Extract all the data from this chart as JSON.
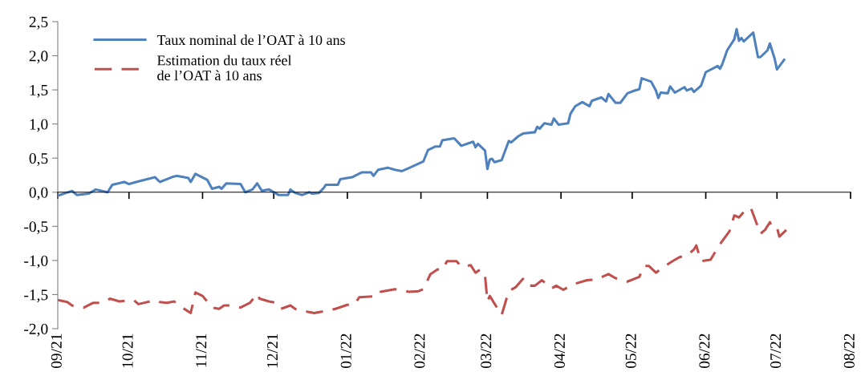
{
  "chart_data": {
    "type": "line",
    "xlim": [
      "2021-09-01",
      "2022-08-01"
    ],
    "xticks": [
      {
        "value": "2021-09-01",
        "label": "09/21"
      },
      {
        "value": "2021-10-01",
        "label": "10/21"
      },
      {
        "value": "2021-11-01",
        "label": "11/21"
      },
      {
        "value": "2021-12-01",
        "label": "12/21"
      },
      {
        "value": "2022-01-01",
        "label": "01/22"
      },
      {
        "value": "2022-02-01",
        "label": "02/22"
      },
      {
        "value": "2022-03-01",
        "label": "03/22"
      },
      {
        "value": "2022-04-01",
        "label": "04/22"
      },
      {
        "value": "2022-05-01",
        "label": "05/22"
      },
      {
        "value": "2022-06-01",
        "label": "06/22"
      },
      {
        "value": "2022-07-01",
        "label": "07/22"
      },
      {
        "value": "2022-08-01",
        "label": "08/22"
      }
    ],
    "ylim": [
      -2.0,
      2.5
    ],
    "yticks": [
      {
        "value": -2.0,
        "label": "-2,0"
      },
      {
        "value": -1.5,
        "label": "-1,5"
      },
      {
        "value": -1.0,
        "label": "-1,0"
      },
      {
        "value": -0.5,
        "label": "-0,5"
      },
      {
        "value": 0.0,
        "label": "0,0"
      },
      {
        "value": 0.5,
        "label": "0,5"
      },
      {
        "value": 1.0,
        "label": "1,0"
      },
      {
        "value": 1.5,
        "label": "1,5"
      },
      {
        "value": 2.0,
        "label": "2,0"
      },
      {
        "value": 2.5,
        "label": "2,5"
      }
    ],
    "legend": "top left",
    "marker": "none",
    "series": [
      {
        "name": "Taux nominal de l’OAT à 10 ans",
        "color": "#4f81bd",
        "line_style": "solid",
        "x": [
          "2021-09-01",
          "2021-09-07",
          "2021-09-09",
          "2021-09-14",
          "2021-09-17",
          "2021-09-22",
          "2021-09-24",
          "2021-09-29",
          "2021-10-01",
          "2021-10-05",
          "2021-10-12",
          "2021-10-14",
          "2021-10-19",
          "2021-10-21",
          "2021-10-26",
          "2021-10-27",
          "2021-10-29",
          "2021-11-03",
          "2021-11-05",
          "2021-11-08",
          "2021-11-09",
          "2021-11-11",
          "2021-11-17",
          "2021-11-19",
          "2021-11-22",
          "2021-11-24",
          "2021-11-26",
          "2021-11-29",
          "2021-12-03",
          "2021-12-07",
          "2021-12-08",
          "2021-12-10",
          "2021-12-13",
          "2021-12-16",
          "2021-12-17",
          "2021-12-20",
          "2021-12-22",
          "2021-12-23",
          "2021-12-28",
          "2021-12-29",
          "2022-01-03",
          "2022-01-07",
          "2022-01-11",
          "2022-01-12",
          "2022-01-14",
          "2022-01-18",
          "2022-01-21",
          "2022-01-24",
          "2022-01-26",
          "2022-02-02",
          "2022-02-04",
          "2022-02-07",
          "2022-02-09",
          "2022-02-10",
          "2022-02-15",
          "2022-02-18",
          "2022-02-23",
          "2022-02-24",
          "2022-02-25",
          "2022-02-28",
          "2022-03-01",
          "2022-03-02",
          "2022-03-03",
          "2022-03-04",
          "2022-03-07",
          "2022-03-10",
          "2022-03-11",
          "2022-03-14",
          "2022-03-16",
          "2022-03-21",
          "2022-03-22",
          "2022-03-23",
          "2022-03-25",
          "2022-03-28",
          "2022-03-29",
          "2022-03-31",
          "2022-04-04",
          "2022-04-05",
          "2022-04-07",
          "2022-04-10",
          "2022-04-13",
          "2022-04-14",
          "2022-04-18",
          "2022-04-20",
          "2022-04-21",
          "2022-04-24",
          "2022-04-26",
          "2022-04-29",
          "2022-05-02",
          "2022-05-04",
          "2022-05-05",
          "2022-05-09",
          "2022-05-11",
          "2022-05-12",
          "2022-05-13",
          "2022-05-16",
          "2022-05-17",
          "2022-05-19",
          "2022-05-23",
          "2022-05-24",
          "2022-05-26",
          "2022-05-27",
          "2022-05-30",
          "2022-06-01",
          "2022-06-06",
          "2022-06-07",
          "2022-06-08",
          "2022-06-10",
          "2022-06-13",
          "2022-06-14",
          "2022-06-15",
          "2022-06-16",
          "2022-06-17",
          "2022-06-21",
          "2022-06-23",
          "2022-06-24",
          "2022-06-27",
          "2022-06-28",
          "2022-06-30",
          "2022-07-01",
          "2022-07-04"
        ],
        "values": [
          -0.05,
          0.02,
          -0.04,
          -0.02,
          0.04,
          0.0,
          0.11,
          0.15,
          0.12,
          0.16,
          0.22,
          0.15,
          0.22,
          0.24,
          0.21,
          0.15,
          0.27,
          0.18,
          0.05,
          0.08,
          0.05,
          0.13,
          0.12,
          0.0,
          0.04,
          0.13,
          0.02,
          0.04,
          -0.04,
          -0.04,
          0.04,
          -0.01,
          -0.04,
          0.0,
          -0.02,
          -0.01,
          0.06,
          0.11,
          0.11,
          0.19,
          0.22,
          0.29,
          0.29,
          0.24,
          0.33,
          0.36,
          0.33,
          0.31,
          0.34,
          0.45,
          0.62,
          0.67,
          0.67,
          0.76,
          0.79,
          0.68,
          0.74,
          0.66,
          0.71,
          0.61,
          0.34,
          0.48,
          0.49,
          0.44,
          0.47,
          0.75,
          0.73,
          0.82,
          0.86,
          0.88,
          0.96,
          0.93,
          1.01,
          0.99,
          1.08,
          0.99,
          1.01,
          1.15,
          1.26,
          1.32,
          1.26,
          1.34,
          1.39,
          1.33,
          1.44,
          1.31,
          1.31,
          1.45,
          1.49,
          1.51,
          1.67,
          1.62,
          1.49,
          1.38,
          1.46,
          1.45,
          1.55,
          1.46,
          1.54,
          1.49,
          1.52,
          1.47,
          1.56,
          1.76,
          1.85,
          1.81,
          1.88,
          2.08,
          2.24,
          2.39,
          2.22,
          2.26,
          2.21,
          2.34,
          1.98,
          1.98,
          2.08,
          2.18,
          1.96,
          1.8,
          1.94
        ]
      },
      {
        "name": "Estimation du taux réel\nde l’OAT à 10 ans",
        "color": "#c0504d",
        "line_style": "dashed",
        "x": [
          "2021-09-01",
          "2021-09-05",
          "2021-09-07",
          "2021-09-09",
          "2021-09-12",
          "2021-09-16",
          "2021-09-20",
          "2021-09-23",
          "2021-09-27",
          "2021-10-03",
          "2021-10-05",
          "2021-10-12",
          "2021-10-14",
          "2021-10-17",
          "2021-10-20",
          "2021-10-23",
          "2021-10-27",
          "2021-10-29",
          "2021-11-01",
          "2021-11-05",
          "2021-11-08",
          "2021-11-10",
          "2021-11-13",
          "2021-11-17",
          "2021-11-21",
          "2021-11-24",
          "2021-11-25",
          "2021-11-29",
          "2021-12-02",
          "2021-12-04",
          "2021-12-08",
          "2021-12-10",
          "2021-12-15",
          "2021-12-18",
          "2021-12-23",
          "2021-12-27",
          "2022-01-01",
          "2022-01-04",
          "2022-01-06",
          "2022-01-14",
          "2022-01-15",
          "2022-01-21",
          "2022-01-27",
          "2022-01-31",
          "2022-02-02",
          "2022-02-05",
          "2022-02-08",
          "2022-02-10",
          "2022-02-12",
          "2022-02-16",
          "2022-02-18",
          "2022-02-22",
          "2022-02-24",
          "2022-02-26",
          "2022-02-28",
          "2022-03-01",
          "2022-03-02",
          "2022-03-05",
          "2022-03-07",
          "2022-03-10",
          "2022-03-13",
          "2022-03-16",
          "2022-03-18",
          "2022-03-21",
          "2022-03-24",
          "2022-03-28",
          "2022-03-30",
          "2022-04-02",
          "2022-04-05",
          "2022-04-07",
          "2022-04-12",
          "2022-04-16",
          "2022-04-21",
          "2022-04-24",
          "2022-04-29",
          "2022-05-04",
          "2022-05-06",
          "2022-05-08",
          "2022-05-11",
          "2022-05-14",
          "2022-05-18",
          "2022-05-21",
          "2022-05-24",
          "2022-05-27",
          "2022-05-28",
          "2022-05-30",
          "2022-06-03",
          "2022-06-07",
          "2022-06-11",
          "2022-06-13",
          "2022-06-15",
          "2022-06-17",
          "2022-06-20",
          "2022-06-22",
          "2022-06-24",
          "2022-06-26",
          "2022-06-28",
          "2022-06-29",
          "2022-07-01",
          "2022-07-02",
          "2022-07-05"
        ],
        "values": [
          -1.58,
          -1.61,
          -1.66,
          -1.68,
          -1.69,
          -1.62,
          -1.62,
          -1.56,
          -1.6,
          -1.58,
          -1.64,
          -1.58,
          -1.61,
          -1.62,
          -1.6,
          -1.68,
          -1.77,
          -1.47,
          -1.52,
          -1.69,
          -1.71,
          -1.66,
          -1.66,
          -1.69,
          -1.62,
          -1.49,
          -1.56,
          -1.6,
          -1.62,
          -1.71,
          -1.66,
          -1.71,
          -1.75,
          -1.77,
          -1.74,
          -1.71,
          -1.65,
          -1.64,
          -1.54,
          -1.52,
          -1.46,
          -1.42,
          -1.46,
          -1.45,
          -1.42,
          -1.2,
          -1.13,
          -1.14,
          -1.01,
          -1.01,
          -1.09,
          -1.07,
          -1.18,
          -1.13,
          -1.22,
          -1.6,
          -1.52,
          -1.69,
          -1.8,
          -1.45,
          -1.39,
          -1.27,
          -1.37,
          -1.37,
          -1.29,
          -1.41,
          -1.37,
          -1.43,
          -1.37,
          -1.34,
          -1.29,
          -1.28,
          -1.2,
          -1.26,
          -1.31,
          -1.24,
          -1.08,
          -1.08,
          -1.18,
          -1.1,
          -1.01,
          -0.95,
          -0.93,
          -0.84,
          -0.78,
          -1.01,
          -0.99,
          -0.76,
          -0.57,
          -0.34,
          -0.37,
          -0.29,
          -0.23,
          -0.42,
          -0.61,
          -0.55,
          -0.44,
          -0.52,
          -0.52,
          -0.65,
          -0.55
        ]
      }
    ]
  }
}
